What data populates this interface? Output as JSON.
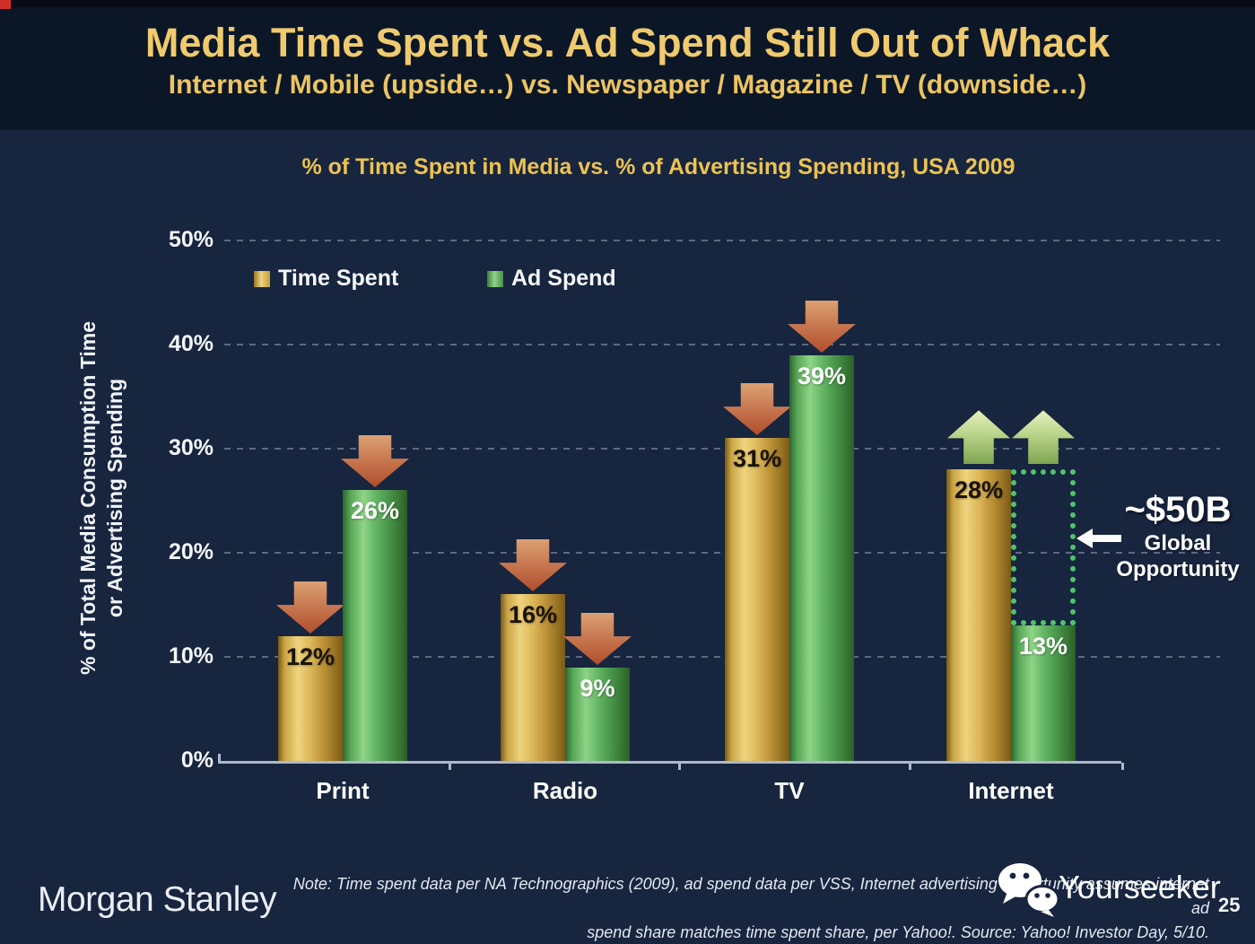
{
  "slide": {
    "title": "Media Time Spent vs. Ad Spend Still Out of Whack",
    "subtitle": "Internet / Mobile (upside…) vs. Newspaper / Magazine / TV (downside…)",
    "page_number": "25"
  },
  "chart_data": {
    "type": "bar",
    "title": "% of Time Spent in Media vs. % of Advertising Spending, USA 2009",
    "ylabel": [
      "% of Total Media Consumption Time",
      "or Advertising Spending"
    ],
    "categories": [
      "Print",
      "Radio",
      "TV",
      "Internet"
    ],
    "series": [
      {
        "name": "Time Spent",
        "color": "#d9af4a",
        "label_color": "#1a1203",
        "values": [
          12,
          16,
          31,
          28
        ],
        "labels": [
          "12%",
          "16%",
          "31%",
          "28%"
        ],
        "trends": [
          "down",
          "down",
          "down",
          "up"
        ]
      },
      {
        "name": "Ad Spend",
        "color": "#58ab59",
        "label_color": "#ffffff",
        "values": [
          26,
          9,
          39,
          13
        ],
        "labels": [
          "26%",
          "9%",
          "39%",
          "13%"
        ],
        "trends": [
          "down",
          "down",
          "down",
          "up"
        ]
      }
    ],
    "ylim": [
      0,
      50
    ],
    "yticks": [
      "0%",
      "10%",
      "20%",
      "30%",
      "40%",
      "50%"
    ],
    "grid": "horizontal-dashed",
    "legend_position": "top-left-inside",
    "annotation": {
      "value": "~$50B",
      "line1": "Global",
      "line2": "Opportunity",
      "category": "Internet",
      "from_value": 13,
      "to_value": 28
    }
  },
  "footer": {
    "logo_text": "Morgan Stanley",
    "note_line1": "Note: Time spent data per NA Technographics (2009), ad spend data per VSS, Internet advertising opportunity assumes internet ad",
    "note_line2": "spend share matches time spent share, per Yahoo!. Source: Yahoo! Investor Day, 5/10.",
    "watermark_text": "Yourseeker"
  },
  "colors": {
    "gold": "#d9af4a",
    "green": "#58ab59",
    "down_arrow": "#b04e2c",
    "up_arrow": "#a9c878",
    "opportunity_dots": "#4fc46a",
    "title_gold": "#f0ca6e",
    "background": "#17253f",
    "header_background": "#0b1727"
  }
}
